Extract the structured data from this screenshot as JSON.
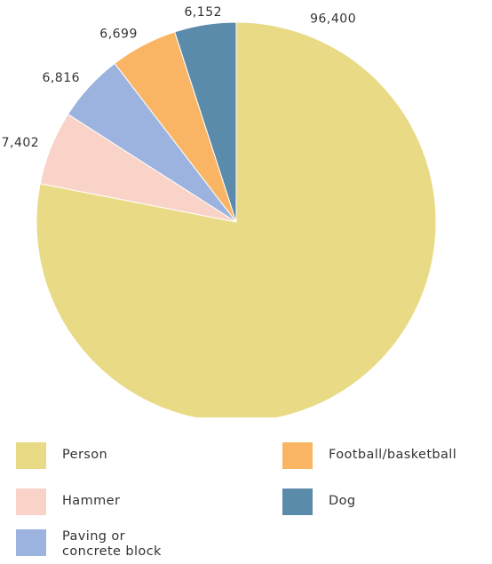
{
  "chart_data": {
    "type": "pie",
    "title": "",
    "labels": [
      "Person",
      "Hammer",
      "Paving or\nconcrete block",
      "Football/basketball",
      "Dog"
    ],
    "values": [
      96400,
      7402,
      6816,
      6699,
      6152
    ],
    "value_labels": [
      "96,400",
      "7,402",
      "6,816",
      "6,699",
      "6,152"
    ],
    "colors": [
      "#E9DA86",
      "#FAD3C8",
      "#9BB3DE",
      "#F9B564",
      "#5B8BAA"
    ],
    "direction": "clockwise",
    "start": "top",
    "legend_position": "bottom"
  }
}
